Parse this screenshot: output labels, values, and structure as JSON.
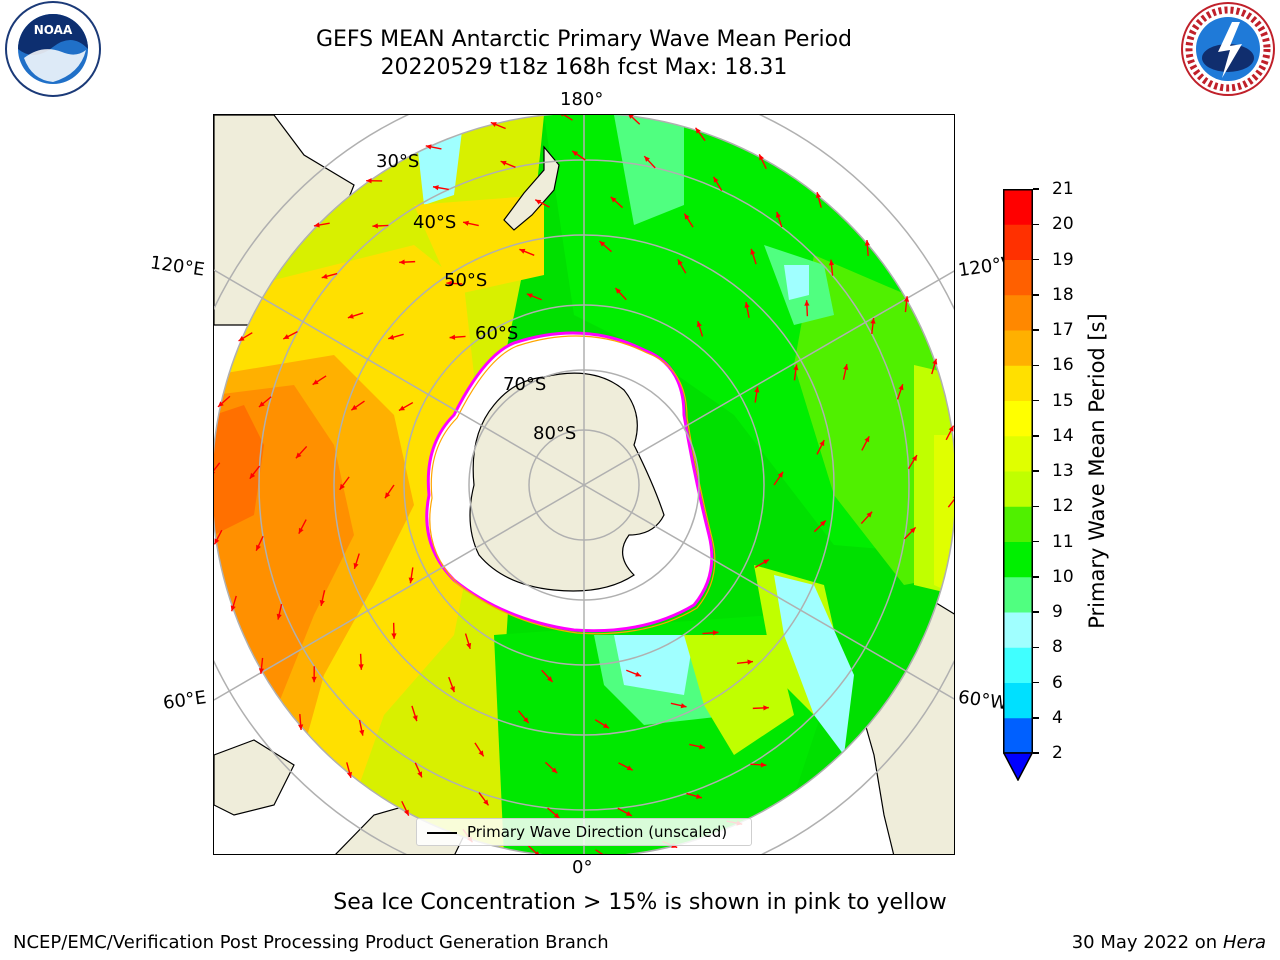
{
  "header": {
    "title_line1": "GEFS MEAN Antarctic Primary Wave Mean Period",
    "title_line2": "20220529 t18z 168h fcst   Max: 18.31"
  },
  "logos": {
    "left": "NOAA",
    "right": "NATIONAL WEATHER SERVICE"
  },
  "map": {
    "projection": "south-polar-stereographic",
    "longitude_labels": {
      "top": "180°",
      "bottom": "0°",
      "left_upper": "120°E",
      "left_lower": "60°E",
      "right_upper": "120°W",
      "right_lower": "60°W"
    },
    "latitude_labels": [
      "30°S",
      "40°S",
      "50°S",
      "60°S",
      "70°S",
      "80°S"
    ],
    "legend": "Primary Wave Direction (unscaled)",
    "arrow_color": "#ff0000",
    "land_color": "#efedda",
    "ice_colors": [
      "#ff00ff",
      "#ffa500",
      "#ffff00"
    ]
  },
  "colorbar": {
    "label": "Primary Wave Mean Period [s]",
    "ticks": [
      "2",
      "4",
      "6",
      "8",
      "9",
      "10",
      "11",
      "12",
      "13",
      "14",
      "15",
      "16",
      "17",
      "18",
      "19",
      "20",
      "21"
    ],
    "colors": [
      "#0060ff",
      "#00e0ff",
      "#40ffff",
      "#a0ffff",
      "#50ff80",
      "#00f000",
      "#50f000",
      "#c0ff00",
      "#e0ff00",
      "#ffff00",
      "#ffe000",
      "#ffb000",
      "#ff8800",
      "#ff6000",
      "#ff3000",
      "#ff0000"
    ],
    "extend_min_color": "#0000ff"
  },
  "footer": {
    "caption": "Sea Ice Concentration > 15% is shown in pink to yellow",
    "left": "NCEP/EMC/Verification Post Processing Product Generation Branch",
    "right_date": "30 May 2022 on",
    "right_host": "Hera"
  }
}
